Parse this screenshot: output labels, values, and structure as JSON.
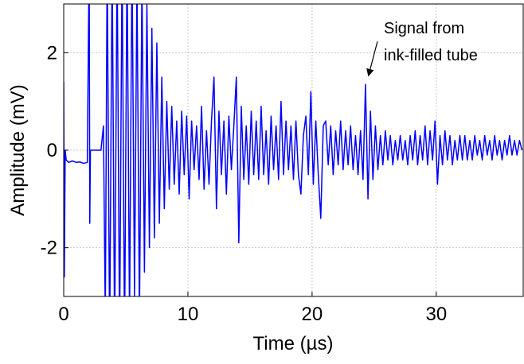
{
  "chart_data": {
    "type": "line",
    "xlabel": "Time (µs)",
    "ylabel": "Amplitude (mV)",
    "annotation": [
      "Signal from",
      "ink-filled tube"
    ],
    "xlim": [
      0,
      37
    ],
    "ylim": [
      -3,
      3
    ],
    "xticks": [
      0,
      10,
      20,
      30
    ],
    "yticks": [
      -2,
      0,
      2
    ],
    "grid": true,
    "series": [
      {
        "name": "Signal",
        "color": "#0000ff",
        "x": [
          0,
          0.05,
          0.12,
          0.2,
          0.4,
          0.7,
          1.0,
          1.3,
          1.6,
          1.9,
          2.05,
          2.1,
          2.15,
          2.2,
          3.0,
          3.2,
          3.35,
          3.5,
          3.7,
          3.9,
          4.1,
          4.3,
          4.5,
          4.7,
          4.9,
          5.1,
          5.3,
          5.5,
          5.7,
          5.9,
          6.1,
          6.3,
          6.5,
          6.7,
          6.9,
          7.1,
          7.3,
          7.5,
          7.7,
          7.9,
          8.1,
          8.3,
          8.5,
          8.7,
          8.9,
          9.1,
          9.3,
          9.5,
          9.7,
          9.9,
          10.1,
          10.3,
          10.5,
          10.7,
          10.9,
          11.1,
          11.3,
          11.5,
          11.7,
          11.9,
          12.1,
          12.3,
          12.5,
          12.7,
          12.9,
          13.1,
          13.3,
          13.5,
          13.7,
          13.9,
          14.1,
          14.3,
          14.5,
          14.7,
          14.9,
          15.1,
          15.3,
          15.5,
          15.7,
          15.9,
          16.1,
          16.3,
          16.5,
          16.7,
          16.9,
          17.1,
          17.3,
          17.5,
          17.7,
          17.9,
          18.1,
          18.3,
          18.5,
          18.7,
          18.9,
          19.1,
          19.3,
          19.5,
          19.7,
          19.9,
          20.1,
          20.3,
          20.5,
          20.7,
          20.9,
          21.1,
          21.3,
          21.5,
          21.7,
          21.9,
          22.1,
          22.3,
          22.5,
          22.7,
          22.9,
          23.1,
          23.3,
          23.5,
          23.7,
          23.9,
          24.1,
          24.3,
          24.5,
          24.7,
          24.9,
          25.1,
          25.3,
          25.5,
          25.7,
          25.9,
          26.1,
          26.3,
          26.5,
          26.7,
          26.9,
          27.1,
          27.3,
          27.5,
          27.7,
          27.9,
          28.1,
          28.3,
          28.5,
          28.7,
          28.9,
          29.1,
          29.3,
          29.5,
          29.7,
          29.9,
          30.1,
          30.3,
          30.5,
          30.7,
          30.9,
          31.1,
          31.3,
          31.5,
          31.7,
          31.9,
          32.1,
          32.3,
          32.5,
          32.7,
          32.9,
          33.1,
          33.3,
          33.5,
          33.7,
          33.9,
          34.1,
          34.3,
          34.5,
          34.7,
          34.9,
          35.1,
          35.3,
          35.5,
          35.7,
          35.9,
          36.1,
          36.3,
          36.5,
          36.7,
          36.9
        ],
        "values": [
          1.4,
          -2.6,
          0.0,
          -0.2,
          -0.25,
          -0.22,
          -0.25,
          -0.24,
          -0.27,
          -0.25,
          4,
          -1.5,
          0,
          0,
          0,
          0.5,
          -3.5,
          4,
          -4,
          4,
          -4,
          4,
          -4,
          4,
          -4,
          4,
          -3.5,
          4,
          -3,
          3.5,
          -3.5,
          3.5,
          -2.5,
          3,
          -2,
          2.5,
          -1.8,
          2.2,
          -1.5,
          1.5,
          -1.2,
          1.0,
          -0.8,
          0.9,
          -0.7,
          0.6,
          -0.9,
          0.8,
          -0.5,
          0.7,
          -1.0,
          0.6,
          -0.4,
          0.5,
          -0.6,
          0.9,
          -0.8,
          0.4,
          -0.7,
          0.6,
          1.5,
          -1.2,
          0.8,
          -0.5,
          0.6,
          -0.9,
          0.7,
          -0.4,
          0.5,
          1.5,
          -1.9,
          0.9,
          -0.6,
          0.5,
          -0.7,
          0.8,
          -0.5,
          0.6,
          -0.6,
          0.9,
          -0.5,
          0.4,
          -0.7,
          0.7,
          -0.4,
          0.5,
          -0.6,
          1.0,
          -0.5,
          0.6,
          -0.4,
          0.5,
          -0.6,
          0.6,
          -0.5,
          -0.9,
          0.3,
          0.7,
          -0.5,
          1.2,
          -0.7,
          0.6,
          -0.5,
          -1.4,
          0.5,
          0.6,
          -0.3,
          0.5,
          -0.5,
          0.4,
          -0.3,
          0.6,
          -0.4,
          0.4,
          -0.3,
          0.5,
          -0.4,
          0.3,
          -0.5,
          0.4,
          -0.6,
          1.35,
          -1.0,
          0.8,
          -0.6,
          0.5,
          -0.4,
          0.3,
          -0.3,
          0.4,
          -0.2,
          0.3,
          -0.3,
          0.2,
          -0.2,
          0.3,
          -0.2,
          0.2,
          -0.3,
          0.3,
          -0.2,
          0.4,
          -0.3,
          0.3,
          -0.2,
          0.5,
          -0.3,
          0.4,
          -0.2,
          0.6,
          -0.7,
          0.3,
          -0.3,
          0.4,
          -0.2,
          0.3,
          -0.3,
          0.2,
          -0.2,
          0.3,
          -0.2,
          0.3,
          -0.2,
          0.2,
          -0.2,
          0.3,
          -0.1,
          0.2,
          -0.2,
          0.3,
          -0.1,
          0.2,
          -0.2,
          0.3,
          -0.1,
          0.2,
          -0.2,
          0.2,
          -0.1,
          0.3,
          -0.1,
          0.2,
          -0.1,
          0.2,
          0.0
        ]
      }
    ]
  }
}
